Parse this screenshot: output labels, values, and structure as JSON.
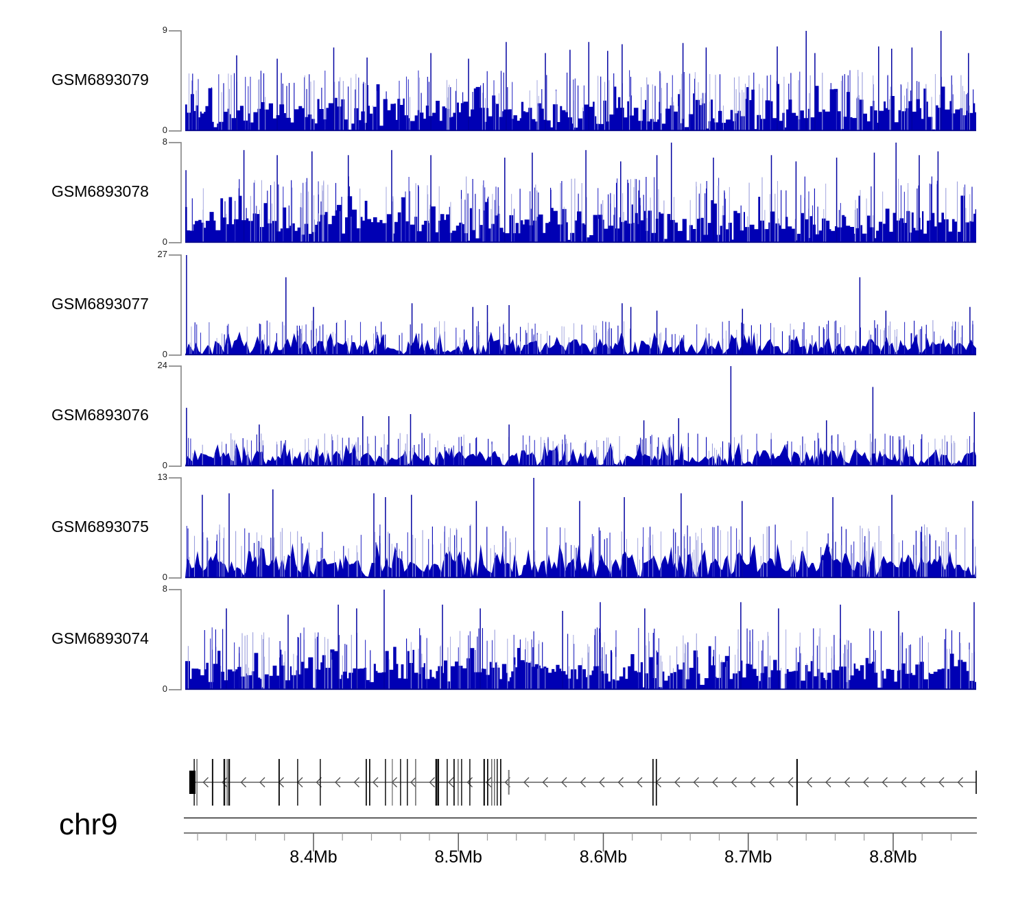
{
  "figure": {
    "background": "#ffffff",
    "chromosome_label": "chr9"
  },
  "colors": {
    "coverage_main": "#0000B4",
    "coverage_dark": "#000088",
    "coverage_mid": "#3434C8",
    "coverage_light": "#9A9EDC",
    "track_axis": "#8A8A8A",
    "gene_line": "#757575",
    "gene_chevron": "#4A4A4A",
    "gene_exon": "#111111",
    "gene_exon_gray": "#666666",
    "axis_line": "#2A2A2A",
    "minor_tick": "#999999",
    "major_tick": "#555555"
  },
  "chart_data": {
    "type": "area",
    "subtype": "genome-coverage-tracks",
    "region": {
      "chromosome": "chr9",
      "x_start_mb": 8.3115,
      "x_end_mb": 8.8573,
      "x_unit": "Mb"
    },
    "x_axis": {
      "major_ticks_mb": [
        8.4,
        8.5,
        8.6,
        8.7,
        8.8
      ],
      "major_tick_labels": [
        "8.4Mb",
        "8.5Mb",
        "8.6Mb",
        "8.7Mb",
        "8.8Mb"
      ],
      "minor_tick_interval_mb": 0.02,
      "minor_tick_start_mb": 8.32,
      "minor_tick_end_mb": 8.84
    },
    "tracks": [
      {
        "label": "GSM6893079",
        "y_max": 9,
        "y_max_label": "9",
        "y_zero_label": "0",
        "style": "step",
        "seed": 101,
        "base_level": 3.0,
        "common_spike": 5.5,
        "notch_p": 0.03,
        "peaks": [
          [
            8.347,
            6.8
          ],
          [
            8.375,
            6.5
          ],
          [
            8.414,
            7.5
          ],
          [
            8.437,
            6.6
          ],
          [
            8.481,
            7.0
          ],
          [
            8.507,
            6.5
          ],
          [
            8.533,
            8.0
          ],
          [
            8.56,
            7.0
          ],
          [
            8.577,
            7.3
          ],
          [
            8.59,
            8.0
          ],
          [
            8.603,
            7.2
          ],
          [
            8.613,
            7.8
          ],
          [
            8.655,
            7.9
          ],
          [
            8.671,
            7.5
          ],
          [
            8.72,
            7.6
          ],
          [
            8.74,
            9.0
          ],
          [
            8.746,
            7.0
          ],
          [
            8.79,
            7.6
          ],
          [
            8.799,
            7.4
          ],
          [
            8.813,
            7.5
          ],
          [
            8.833,
            9.0
          ],
          [
            8.852,
            7.0
          ]
        ]
      },
      {
        "label": "GSM6893078",
        "y_max": 8,
        "y_max_label": "8",
        "y_zero_label": "0",
        "style": "step",
        "seed": 202,
        "base_level": 2.6,
        "common_spike": 5.3,
        "notch_p": 0.03,
        "peaks": [
          [
            8.312,
            5.8
          ],
          [
            8.352,
            7.4
          ],
          [
            8.375,
            7.0
          ],
          [
            8.399,
            7.3
          ],
          [
            8.424,
            7.0
          ],
          [
            8.454,
            7.4
          ],
          [
            8.481,
            7.0
          ],
          [
            8.532,
            6.8
          ],
          [
            8.551,
            7.2
          ],
          [
            8.588,
            7.4
          ],
          [
            8.612,
            6.5
          ],
          [
            8.637,
            7.0
          ],
          [
            8.647,
            8.0
          ],
          [
            8.676,
            6.8
          ],
          [
            8.716,
            7.0
          ],
          [
            8.733,
            6.5
          ],
          [
            8.761,
            6.8
          ],
          [
            8.787,
            7.2
          ],
          [
            8.802,
            8.0
          ],
          [
            8.818,
            7.0
          ],
          [
            8.831,
            7.3
          ]
        ]
      },
      {
        "label": "GSM6893077",
        "y_max": 27,
        "y_max_label": "27",
        "y_zero_label": "0",
        "style": "poly",
        "seed": 303,
        "base_level": 4.4,
        "common_spike": 9.5,
        "notch_p": 0.07,
        "peaks": [
          [
            8.3124,
            27
          ],
          [
            8.381,
            21
          ],
          [
            8.4,
            13
          ],
          [
            8.468,
            14
          ],
          [
            8.51,
            13
          ],
          [
            8.52,
            13.5
          ],
          [
            8.535,
            13.5
          ],
          [
            8.613,
            14
          ],
          [
            8.619,
            13
          ],
          [
            8.637,
            12
          ],
          [
            8.696,
            12.5
          ],
          [
            8.777,
            21
          ],
          [
            8.795,
            12
          ],
          [
            8.853,
            13
          ]
        ]
      },
      {
        "label": "GSM6893076",
        "y_max": 24,
        "y_max_label": "24",
        "y_zero_label": "0",
        "style": "poly",
        "seed": 404,
        "base_level": 4.0,
        "common_spike": 8.0,
        "notch_p": 0.08,
        "peaks": [
          [
            8.3124,
            14
          ],
          [
            8.3626,
            10
          ],
          [
            8.434,
            12
          ],
          [
            8.452,
            12
          ],
          [
            8.467,
            12.5
          ],
          [
            8.535,
            10
          ],
          [
            8.628,
            11
          ],
          [
            8.652,
            11.5
          ],
          [
            8.688,
            24
          ],
          [
            8.754,
            11
          ],
          [
            8.786,
            19
          ],
          [
            8.856,
            13
          ]
        ]
      },
      {
        "label": "GSM6893075",
        "y_max": 13,
        "y_max_label": "13",
        "y_zero_label": "0",
        "style": "poly",
        "seed": 505,
        "base_level": 3.2,
        "common_spike": 7.0,
        "notch_p": 0.08,
        "peaks": [
          [
            8.3233,
            10.8
          ],
          [
            8.3418,
            11
          ],
          [
            8.372,
            11.5
          ],
          [
            8.4417,
            11
          ],
          [
            8.4497,
            10.5
          ],
          [
            8.4676,
            10.8
          ],
          [
            8.5124,
            10
          ],
          [
            8.552,
            13
          ],
          [
            8.5837,
            10
          ],
          [
            8.6145,
            10.5
          ],
          [
            8.6537,
            11
          ],
          [
            8.6958,
            10
          ],
          [
            8.7584,
            10.5
          ],
          [
            8.7991,
            10.8
          ],
          [
            8.855,
            10
          ]
        ]
      },
      {
        "label": "GSM6893074",
        "y_max": 8,
        "y_max_label": "8",
        "y_zero_label": "0",
        "style": "step",
        "seed": 606,
        "base_level": 2.4,
        "common_spike": 5.0,
        "notch_p": 0.04,
        "peaks": [
          [
            8.3399,
            6.5
          ],
          [
            8.3825,
            6.0
          ],
          [
            8.4171,
            6.8
          ],
          [
            8.4298,
            6.5
          ],
          [
            8.4488,
            8.0
          ],
          [
            8.489,
            6.8
          ],
          [
            8.5151,
            6.5
          ],
          [
            8.5719,
            6.3
          ],
          [
            8.5979,
            7.0
          ],
          [
            8.6286,
            6.5
          ],
          [
            8.6949,
            7.0
          ],
          [
            8.7209,
            6.5
          ],
          [
            8.7636,
            6.8
          ],
          [
            8.8038,
            6.3
          ],
          [
            8.8559,
            7.0
          ]
        ]
      }
    ],
    "gene_track": {
      "strand": "-",
      "arrow_direction": "left",
      "start_box_mb": [
        8.3143,
        8.3186
      ],
      "line_start_mb": 8.316,
      "line_end_mb": 8.8573,
      "short_marker_mb": 8.5348,
      "end_marker_mb": 8.8573,
      "exons": [
        {
          "p": 8.3177,
          "w": 1.5,
          "s": "b"
        },
        {
          "p": 8.3196,
          "w": 1.5,
          "s": "g"
        },
        {
          "p": 8.3304,
          "w": 2.0,
          "s": "b"
        },
        {
          "p": 8.3385,
          "w": 2.5,
          "s": "b"
        },
        {
          "p": 8.3404,
          "w": 1.5,
          "s": "g"
        },
        {
          "p": 8.3418,
          "w": 2.5,
          "s": "b"
        },
        {
          "p": 8.3763,
          "w": 2.0,
          "s": "b"
        },
        {
          "p": 8.3891,
          "w": 1.5,
          "s": "b"
        },
        {
          "p": 8.4047,
          "w": 1.5,
          "s": "b"
        },
        {
          "p": 8.4364,
          "w": 1.8,
          "s": "b"
        },
        {
          "p": 8.4388,
          "w": 1.8,
          "s": "b"
        },
        {
          "p": 8.4497,
          "w": 1.5,
          "s": "b"
        },
        {
          "p": 8.4544,
          "w": 1.2,
          "s": "g"
        },
        {
          "p": 8.4601,
          "w": 1.5,
          "s": "b"
        },
        {
          "p": 8.4648,
          "w": 1.5,
          "s": "b"
        },
        {
          "p": 8.4705,
          "w": 1.5,
          "s": "g"
        },
        {
          "p": 8.4847,
          "w": 2.5,
          "s": "b"
        },
        {
          "p": 8.4861,
          "w": 2.5,
          "s": "b"
        },
        {
          "p": 8.4923,
          "w": 1.5,
          "s": "b"
        },
        {
          "p": 8.497,
          "w": 1.8,
          "s": "b"
        },
        {
          "p": 8.4998,
          "w": 1.5,
          "s": "g"
        },
        {
          "p": 8.5022,
          "w": 1.5,
          "s": "b"
        },
        {
          "p": 8.5079,
          "w": 1.5,
          "s": "b"
        },
        {
          "p": 8.5178,
          "w": 2.2,
          "s": "b"
        },
        {
          "p": 8.5202,
          "w": 1.8,
          "s": "b"
        },
        {
          "p": 8.523,
          "w": 1.5,
          "s": "g"
        },
        {
          "p": 8.5249,
          "w": 1.5,
          "s": "g"
        },
        {
          "p": 8.5268,
          "w": 1.5,
          "s": "b"
        },
        {
          "p": 8.5292,
          "w": 1.8,
          "s": "b"
        },
        {
          "p": 8.6343,
          "w": 1.8,
          "s": "b"
        },
        {
          "p": 8.6366,
          "w": 1.8,
          "s": "b"
        },
        {
          "p": 8.7337,
          "w": 2.2,
          "s": "b"
        }
      ]
    }
  },
  "labels": {
    "chromosome": "chr9"
  }
}
